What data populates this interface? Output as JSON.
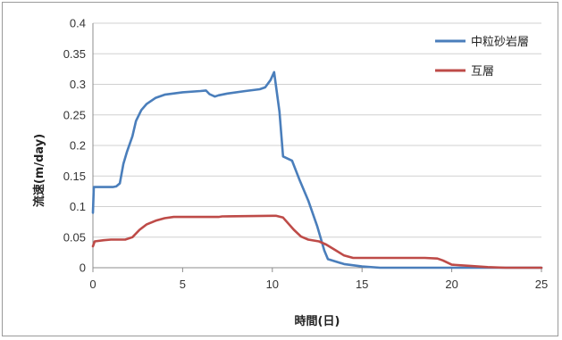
{
  "chart_data": {
    "type": "line",
    "title": "",
    "xlabel": "時間(日)",
    "ylabel": "流速(m/day)",
    "xlim": [
      0,
      25
    ],
    "ylim": [
      0,
      0.4
    ],
    "x_ticks": [
      "0",
      "5",
      "10",
      "15",
      "20",
      "25"
    ],
    "y_ticks": [
      "0",
      "0.05",
      "0.1",
      "0.15",
      "0.2",
      "0.25",
      "0.3",
      "0.35",
      "0.4"
    ],
    "grid": "horizontal",
    "legend_position": "top-right",
    "series": [
      {
        "name": "中粒砂岩層",
        "color": "#4a7ebb",
        "points": [
          [
            0.0,
            0.09
          ],
          [
            0.05,
            0.132
          ],
          [
            1.1,
            0.132
          ],
          [
            1.3,
            0.133
          ],
          [
            1.5,
            0.138
          ],
          [
            1.7,
            0.17
          ],
          [
            1.9,
            0.19
          ],
          [
            2.2,
            0.215
          ],
          [
            2.4,
            0.24
          ],
          [
            2.7,
            0.258
          ],
          [
            3.0,
            0.268
          ],
          [
            3.5,
            0.278
          ],
          [
            4.0,
            0.283
          ],
          [
            5.0,
            0.287
          ],
          [
            6.0,
            0.289
          ],
          [
            6.3,
            0.29
          ],
          [
            6.5,
            0.284
          ],
          [
            6.8,
            0.28
          ],
          [
            7.0,
            0.282
          ],
          [
            7.5,
            0.285
          ],
          [
            8.5,
            0.289
          ],
          [
            9.3,
            0.292
          ],
          [
            9.6,
            0.295
          ],
          [
            9.9,
            0.307
          ],
          [
            10.1,
            0.32
          ],
          [
            10.4,
            0.255
          ],
          [
            10.6,
            0.182
          ],
          [
            11.1,
            0.175
          ],
          [
            11.5,
            0.145
          ],
          [
            12.0,
            0.11
          ],
          [
            12.5,
            0.068
          ],
          [
            12.9,
            0.028
          ],
          [
            13.1,
            0.014
          ],
          [
            14.0,
            0.006
          ],
          [
            15.0,
            0.002
          ],
          [
            16.0,
            0.0
          ],
          [
            25.0,
            0.0
          ]
        ]
      },
      {
        "name": "互層",
        "color": "#be4b48",
        "points": [
          [
            0.0,
            0.035
          ],
          [
            0.1,
            0.043
          ],
          [
            0.6,
            0.045
          ],
          [
            1.0,
            0.046
          ],
          [
            1.8,
            0.046
          ],
          [
            2.2,
            0.05
          ],
          [
            2.6,
            0.062
          ],
          [
            3.0,
            0.071
          ],
          [
            3.5,
            0.077
          ],
          [
            4.0,
            0.081
          ],
          [
            4.5,
            0.083
          ],
          [
            7.0,
            0.083
          ],
          [
            7.2,
            0.084
          ],
          [
            10.0,
            0.085
          ],
          [
            10.2,
            0.085
          ],
          [
            10.6,
            0.082
          ],
          [
            11.2,
            0.062
          ],
          [
            11.6,
            0.051
          ],
          [
            12.0,
            0.046
          ],
          [
            12.6,
            0.043
          ],
          [
            13.0,
            0.038
          ],
          [
            13.5,
            0.029
          ],
          [
            14.0,
            0.02
          ],
          [
            14.5,
            0.016
          ],
          [
            15.0,
            0.016
          ],
          [
            18.5,
            0.016
          ],
          [
            19.2,
            0.015
          ],
          [
            19.5,
            0.012
          ],
          [
            20.0,
            0.005
          ],
          [
            21.0,
            0.003
          ],
          [
            22.0,
            0.001
          ],
          [
            23.0,
            0.0
          ],
          [
            25.0,
            0.0
          ]
        ]
      }
    ]
  }
}
